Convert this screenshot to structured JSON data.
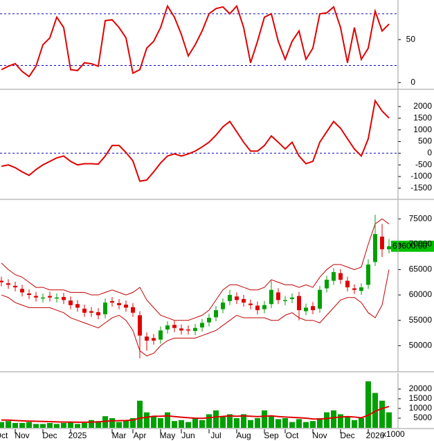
{
  "chart_data": [
    {
      "type": "line",
      "series": [
        {
          "color": "#e00000",
          "values": [
            15,
            19,
            22,
            13,
            7,
            19,
            44,
            52,
            76,
            64,
            15,
            14,
            23,
            22,
            19,
            72,
            73,
            64,
            52,
            11,
            15,
            40,
            48,
            64,
            89,
            76,
            56,
            31,
            44,
            60,
            80,
            86,
            88,
            80,
            89,
            64,
            23,
            48,
            76,
            80,
            48,
            27,
            48,
            60,
            27,
            40,
            80,
            81,
            88,
            64,
            23,
            64,
            27,
            40,
            83,
            60,
            68
          ]
        }
      ],
      "ylim": [
        -7,
        96
      ],
      "yticks": [
        0,
        50
      ],
      "hlines": [
        80,
        20
      ],
      "hline_color": "#0000cc"
    },
    {
      "type": "line",
      "series": [
        {
          "color": "#e00000",
          "values": [
            -560,
            -500,
            -620,
            -800,
            -950,
            -700,
            -500,
            -350,
            -200,
            -120,
            -350,
            -500,
            -450,
            -450,
            -470,
            -120,
            330,
            330,
            30,
            -330,
            -1200,
            -1150,
            -800,
            -420,
            -120,
            -30,
            -120,
            -30,
            90,
            270,
            470,
            770,
            1130,
            1360,
            920,
            470,
            90,
            90,
            330,
            740,
            470,
            180,
            470,
            -120,
            -450,
            -350,
            470,
            920,
            1360,
            1070,
            620,
            180,
            -120,
            620,
            2250,
            1810,
            1510
          ]
        }
      ],
      "ylim": [
        -1950,
        2710
      ],
      "yticks": [
        -1500,
        -1000,
        -500,
        0,
        500,
        1000,
        1500,
        2000
      ],
      "hlines": [
        0
      ],
      "hline_color": "#0000cc"
    },
    {
      "type": "candlestick",
      "open": [
        62800,
        62300,
        61800,
        61200,
        60300,
        59800,
        59300,
        59800,
        59300,
        59600,
        58900,
        58200,
        57300,
        56800,
        56600,
        56200,
        58800,
        58400,
        58100,
        57600,
        56000,
        51800,
        51500,
        51200,
        53200,
        54100,
        53400,
        53200,
        52900,
        53600,
        54600,
        55600,
        57200,
        58800,
        59700,
        59200,
        58300,
        57900,
        57200,
        58200,
        60500,
        58800,
        59200,
        59800,
        56800,
        57800,
        57300,
        61300,
        62800,
        64300,
        62800,
        61300,
        60800,
        62000,
        66500,
        71500,
        69000
      ],
      "high": [
        63600,
        63100,
        62600,
        62000,
        61100,
        60600,
        60300,
        60600,
        60300,
        60400,
        59700,
        59000,
        58100,
        57600,
        57400,
        59300,
        59600,
        59200,
        58900,
        58400,
        56800,
        52600,
        52300,
        53800,
        54800,
        54900,
        54200,
        54000,
        54300,
        55300,
        56300,
        57800,
        59300,
        61000,
        60500,
        60000,
        59100,
        58700,
        58800,
        62800,
        61300,
        59800,
        60300,
        60600,
        58300,
        58600,
        61800,
        63800,
        65300,
        65100,
        63600,
        62100,
        62300,
        67000,
        75800,
        74000,
        71000
      ],
      "low": [
        61700,
        61200,
        60700,
        59700,
        59200,
        58700,
        58500,
        58700,
        58500,
        58200,
        57200,
        56700,
        55700,
        55700,
        55200,
        55400,
        57700,
        57200,
        56700,
        55700,
        47500,
        49000,
        50200,
        50400,
        52400,
        52700,
        52200,
        52200,
        52100,
        52800,
        53800,
        54800,
        56400,
        58000,
        58200,
        57700,
        57200,
        56200,
        56400,
        57400,
        58200,
        58000,
        58400,
        55000,
        56000,
        56200,
        56500,
        60500,
        62000,
        62200,
        60700,
        60200,
        60000,
        61200,
        65700,
        67500,
        68200
      ],
      "close": [
        62500,
        62000,
        61500,
        60500,
        60000,
        59500,
        59500,
        59500,
        59500,
        59000,
        58000,
        57500,
        56500,
        56500,
        56000,
        58500,
        58500,
        58000,
        57500,
        56500,
        52000,
        51000,
        51000,
        53000,
        54000,
        53500,
        53000,
        53000,
        53500,
        54500,
        55500,
        57000,
        58500,
        60000,
        59000,
        58500,
        58000,
        57000,
        58000,
        61000,
        59000,
        59000,
        59500,
        57000,
        57500,
        57000,
        61000,
        63000,
        64500,
        63000,
        61500,
        61000,
        61500,
        66000,
        72000,
        69000,
        69600
      ],
      "up_color": "#00a000",
      "down_color": "#e00000",
      "bands": [
        {
          "color": "#c00000",
          "values": [
            66300,
            65000,
            64000,
            63500,
            62500,
            61500,
            61500,
            61000,
            61000,
            61000,
            60500,
            60500,
            60500,
            60000,
            60000,
            60500,
            61000,
            60500,
            60000,
            60500,
            61500,
            59000,
            57500,
            56000,
            55500,
            55000,
            55000,
            55000,
            55500,
            56000,
            57000,
            59000,
            61000,
            62000,
            62000,
            61500,
            61000,
            61000,
            61500,
            63000,
            62500,
            62000,
            62000,
            61500,
            62000,
            61500,
            63500,
            65000,
            66000,
            66000,
            65500,
            65000,
            65500,
            70000,
            74000,
            75000,
            74000
          ]
        },
        {
          "color": "#c00000",
          "values": [
            60000,
            59500,
            58500,
            58000,
            57500,
            57500,
            57500,
            57500,
            57000,
            56500,
            55500,
            55000,
            54500,
            54000,
            53500,
            54500,
            55500,
            56000,
            55000,
            53000,
            49000,
            48000,
            48500,
            50000,
            51000,
            51500,
            51500,
            51500,
            51500,
            52000,
            52500,
            53000,
            54000,
            55000,
            56000,
            55500,
            55500,
            55500,
            55500,
            55000,
            55000,
            56000,
            56500,
            55500,
            55000,
            55000,
            54500,
            56000,
            57500,
            59000,
            59500,
            59500,
            58500,
            56500,
            55500,
            58000,
            65000
          ]
        }
      ],
      "last_label": "69600.00",
      "last_label_color": "#00c000",
      "ylim": [
        45000,
        78700
      ],
      "yticks": [
        50000,
        55000,
        60000,
        65000,
        70000,
        75000
      ]
    },
    {
      "type": "bar",
      "series": [
        {
          "style": "bar",
          "color": "#00a000",
          "values": [
            3000,
            3500,
            2500,
            2500,
            3000,
            2000,
            2000,
            2500,
            2000,
            2500,
            3000,
            2000,
            2500,
            4000,
            3500,
            6000,
            5000,
            3000,
            4000,
            5000,
            14000,
            8000,
            6000,
            5000,
            8000,
            3500,
            4000,
            3000,
            5000,
            4000,
            7000,
            9000,
            6000,
            7000,
            5000,
            7000,
            4000,
            5000,
            9000,
            6000,
            4500,
            5000,
            3000,
            4500,
            3000,
            3500,
            5000,
            8000,
            9000,
            7000,
            6000,
            4000,
            5000,
            24000,
            18000,
            14000,
            8000
          ]
        },
        {
          "style": "line",
          "color": "#e00000",
          "values": [
            4000,
            4000,
            3800,
            3600,
            3500,
            3400,
            3300,
            3200,
            3100,
            3000,
            3000,
            2900,
            2900,
            3000,
            3100,
            3400,
            3600,
            3700,
            3800,
            4000,
            5000,
            5500,
            6000,
            6000,
            6200,
            5800,
            5500,
            5200,
            5000,
            4900,
            5200,
            5600,
            5900,
            6200,
            6000,
            6200,
            6000,
            5800,
            6000,
            6200,
            5800,
            5600,
            5400,
            5200,
            5000,
            4600,
            4500,
            4800,
            5200,
            5600,
            5800,
            5600,
            5200,
            6500,
            8500,
            10000,
            11000
          ]
        }
      ],
      "unit_label": "x1000",
      "categories": [
        "Oct",
        null,
        null,
        "Nov",
        null,
        null,
        null,
        "Dec",
        null,
        null,
        null,
        "2025",
        null,
        null,
        null,
        null,
        null,
        "Mar",
        null,
        null,
        "Apr",
        null,
        null,
        null,
        "May",
        null,
        null,
        "Jun",
        null,
        null,
        null,
        "Jul",
        null,
        null,
        null,
        "Aug",
        null,
        null,
        null,
        "Sep",
        null,
        null,
        "Oct",
        null,
        null,
        null,
        "Nov",
        null,
        null,
        null,
        "Dec",
        null,
        null,
        null,
        "2026",
        null,
        null
      ],
      "ylim": [
        0,
        28200
      ],
      "yticks": [
        5000,
        10000,
        15000,
        20000
      ]
    }
  ]
}
